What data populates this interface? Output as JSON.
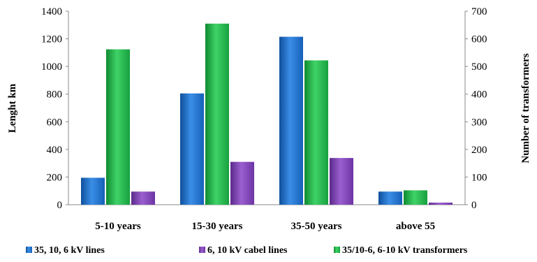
{
  "chart_data": {
    "type": "bar",
    "categories": [
      "5-10 years",
      "15-30 years",
      "35-50 years",
      "above 55"
    ],
    "series": [
      {
        "name": "35, 10, 6 kV lines",
        "axis": "left",
        "color": "#1f6fc8",
        "values": [
          195,
          805,
          1215,
          95
        ]
      },
      {
        "name": "35/10-6, 6-10 kV transformers",
        "axis": "right",
        "color": "#22b14c",
        "values": [
          562,
          655,
          522,
          52
        ]
      },
      {
        "name": "6, 10 kV cabel lines",
        "axis": "left",
        "color": "#7b3fb0",
        "values": [
          95,
          310,
          338,
          15
        ]
      }
    ],
    "legend_order": [
      0,
      2,
      1
    ],
    "ylabel": "Lenght km",
    "ylabel_right": "Number of transformers",
    "ylim": [
      0,
      1400
    ],
    "ylim_right": [
      0,
      700
    ],
    "yticks": [
      0,
      200,
      400,
      600,
      800,
      1000,
      1200,
      1400
    ],
    "yticks_right": [
      0,
      100,
      200,
      300,
      400,
      500,
      600,
      700
    ],
    "legend_position": "bottom",
    "grid": false
  }
}
